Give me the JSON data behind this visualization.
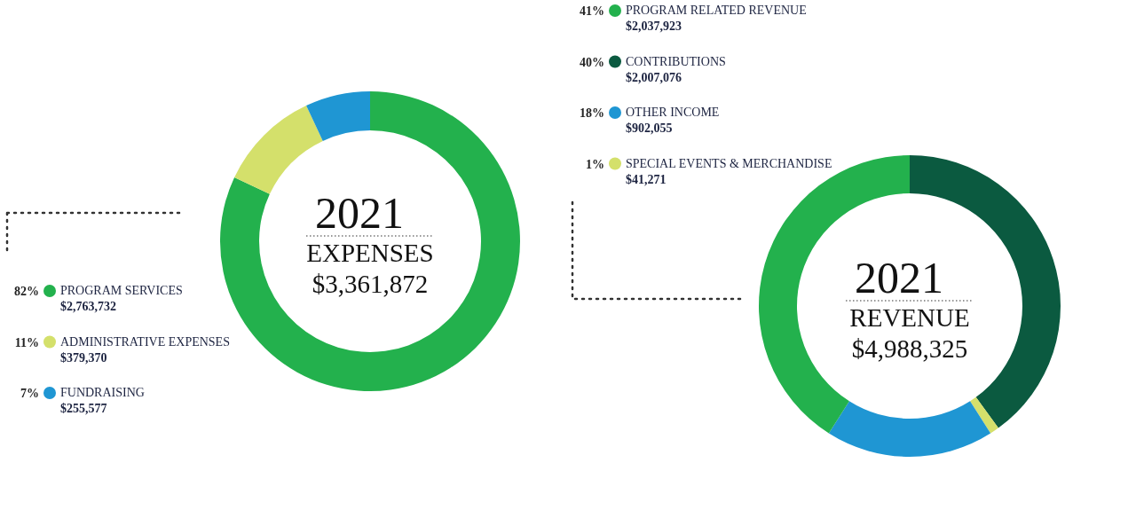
{
  "chart_data": [
    {
      "type": "donut",
      "title": "2021",
      "subtitle": "EXPENSES",
      "categories": [
        "PROGRAM SERVICES",
        "ADMINISTRATIVE EXPENSES",
        "FUNDRAISING"
      ],
      "values": [
        82,
        11,
        7
      ],
      "colors": [
        "#23b14d",
        "#d4e06b",
        "#1f96d3"
      ],
      "value_labels": [
        "82%",
        "11%",
        "7%"
      ],
      "annotations": [
        "$3,361,872",
        "$2,763,732",
        "$379,370",
        "$255,577"
      ],
      "legend": "left"
    },
    {
      "type": "donut",
      "title": "2021",
      "subtitle": "REVENUE",
      "categories": [
        "CONTRIBUTIONS",
        "SPECIAL EVENTS & MERCHANDISE",
        "OTHER INCOME",
        "PROGRAM RELATED REVENUE"
      ],
      "values": [
        40,
        1,
        18,
        41
      ],
      "colors": [
        "#0b5a40",
        "#d4e06b",
        "#1f96d3",
        "#23b14d"
      ],
      "value_labels": [
        "40%",
        "1%",
        "18%",
        "41%"
      ],
      "annotations": [
        "$4,988,325",
        "$2,007,076",
        "$41,271",
        "$902,055",
        "$2,037,923"
      ],
      "legend": "top left"
    }
  ]
}
